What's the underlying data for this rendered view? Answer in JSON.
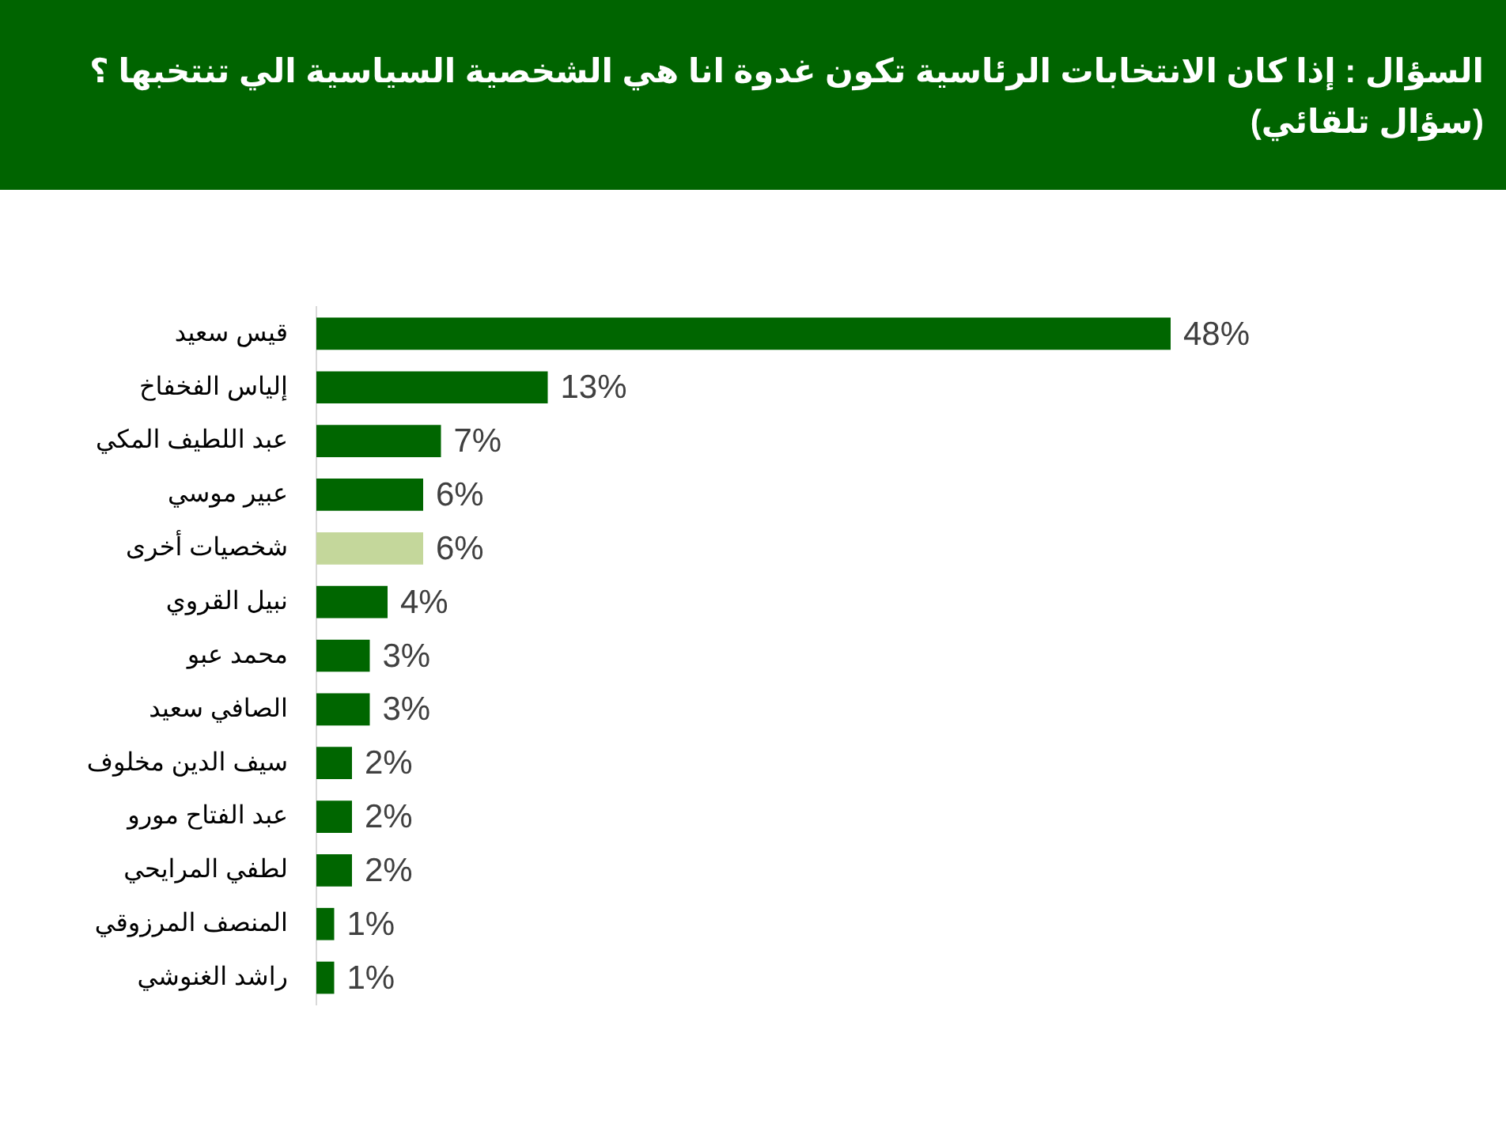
{
  "chart_data": {
    "type": "bar",
    "orientation": "horizontal",
    "title": "السؤال : إذا كان الانتخابات الرئاسية تكون غدوة انا هي الشخصية السياسية الي تنتخبها ؟\n(سؤال تلقائي)",
    "categories": [
      "قيس سعيد",
      "إلياس الفخفاخ",
      "عبد اللطيف المكي",
      "عبير موسي",
      "شخصيات أخرى",
      "نبيل القروي",
      "محمد عبو",
      "الصافي سعيد",
      "سيف الدين مخلوف",
      "عبد الفتاح مورو",
      "لطفي المرايحي",
      "المنصف المرزوقي",
      "راشد الغنوشي"
    ],
    "values": [
      48,
      13,
      7,
      6,
      6,
      4,
      3,
      3,
      2,
      2,
      2,
      1,
      1
    ],
    "value_labels": [
      "48%",
      "13%",
      "7%",
      "6%",
      "6%",
      "4%",
      "3%",
      "3%",
      "2%",
      "2%",
      "2%",
      "1%",
      "1%"
    ],
    "colors": [
      "#006600",
      "#006600",
      "#006600",
      "#006600",
      "#c4d79b",
      "#006600",
      "#006600",
      "#006600",
      "#006600",
      "#006600",
      "#006600",
      "#006600",
      "#006600"
    ],
    "tick_labels": "y"
  }
}
